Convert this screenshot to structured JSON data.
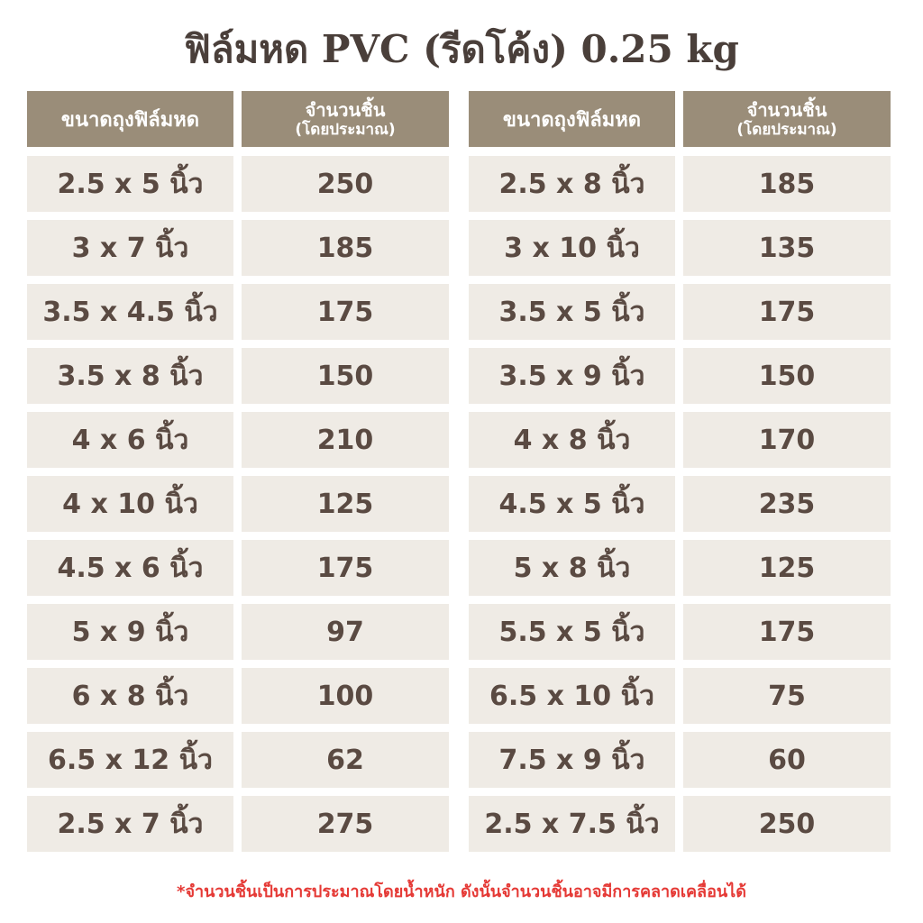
{
  "title": "ฟิล์มหด PVC (รีดโค้ง) 0.25 kg",
  "tables": [
    {
      "size_header": "ขนาดถุงฟิล์มหด",
      "count_header": "จำนวนชิ้น",
      "count_subheader": "(โดยประมาณ)",
      "rows": [
        [
          "2.5 x 5 นิ้ว",
          250
        ],
        [
          "3 x 7 นิ้ว",
          185
        ],
        [
          "3.5 x 4.5 นิ้ว",
          175
        ],
        [
          "3.5 x 8 นิ้ว",
          150
        ],
        [
          "4 x 6 นิ้ว",
          210
        ],
        [
          "4 x 10 นิ้ว",
          125
        ],
        [
          "4.5 x 6 นิ้ว",
          175
        ],
        [
          "5 x 9 นิ้ว",
          97
        ],
        [
          "6 x 8 นิ้ว",
          100
        ],
        [
          "6.5 x 12 นิ้ว",
          62
        ],
        [
          "2.5 x 7 นิ้ว",
          275
        ]
      ]
    },
    {
      "size_header": "ขนาดถุงฟิล์มหด",
      "count_header": "จำนวนชิ้น",
      "count_subheader": "(โดยประมาณ)",
      "rows": [
        [
          "2.5 x 8 นิ้ว",
          185
        ],
        [
          "3 x 10 นิ้ว",
          135
        ],
        [
          "3.5 x 5 นิ้ว",
          175
        ],
        [
          "3.5 x 9 นิ้ว",
          150
        ],
        [
          "4 x 8 นิ้ว",
          170
        ],
        [
          "4.5 x 5 นิ้ว",
          235
        ],
        [
          "5 x 8 นิ้ว",
          125
        ],
        [
          "5.5 x 5 นิ้ว",
          175
        ],
        [
          "6.5 x 10 นิ้ว",
          75
        ],
        [
          "7.5 x 9 นิ้ว",
          60
        ],
        [
          "2.5 x 7.5 นิ้ว",
          250
        ]
      ]
    }
  ],
  "footnote": "*จำนวนชิ้นเป็นการประมาณโดยน้ำหนัก ดังนั้นจำนวนชิ้นอาจมีการคลาดเคลื่อนได้"
}
